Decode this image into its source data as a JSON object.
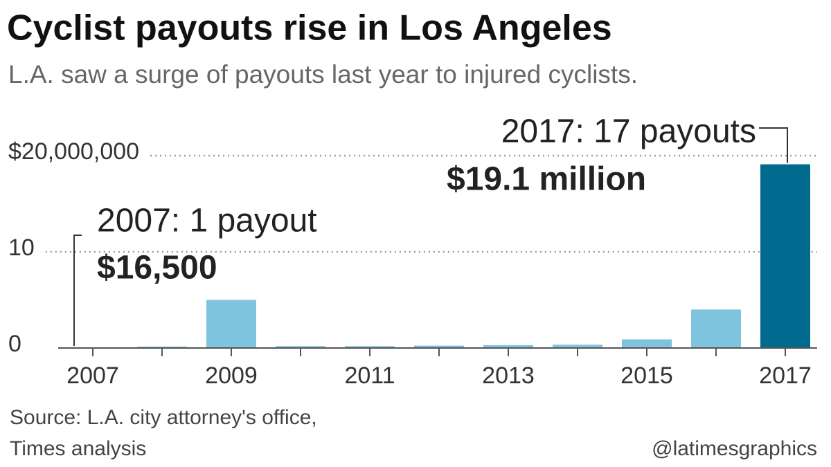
{
  "chart_data": {
    "type": "bar",
    "title": "Cyclist payouts rise in Los Angeles",
    "subtitle": "L.A. saw a surge of payouts last year to injured cyclists.",
    "categories": [
      "2007",
      null,
      "2009",
      null,
      "2011",
      null,
      "2013",
      null,
      "2015",
      null,
      "2017"
    ],
    "values": [
      16500,
      150000,
      5000000,
      200000,
      200000,
      250000,
      300000,
      350000,
      900000,
      4000000,
      19100000
    ],
    "value_labels": [
      "$16,500",
      null,
      null,
      null,
      null,
      null,
      null,
      null,
      null,
      null,
      "$19.1 million"
    ],
    "annotations": [
      "2007: 1 payout",
      null,
      null,
      null,
      null,
      null,
      null,
      null,
      null,
      null,
      "2017: 17 payouts"
    ],
    "colors": [
      "#7fc4de",
      "#7fc4de",
      "#7fc4de",
      "#7fc4de",
      "#7fc4de",
      "#7fc4de",
      "#7fc4de",
      "#7fc4de",
      "#7fc4de",
      "#7fc4de",
      "#006b8f"
    ],
    "ylim": [
      0,
      20000000
    ],
    "yticks": [
      0,
      {
        "value": 10000000,
        "label": "10"
      },
      {
        "value": 20000000,
        "label": "$20,000,000"
      }
    ],
    "grid": true,
    "source": [
      "Source: L.A. city attorney's office,",
      "Times analysis"
    ],
    "credit": "@latimesgraphics"
  }
}
